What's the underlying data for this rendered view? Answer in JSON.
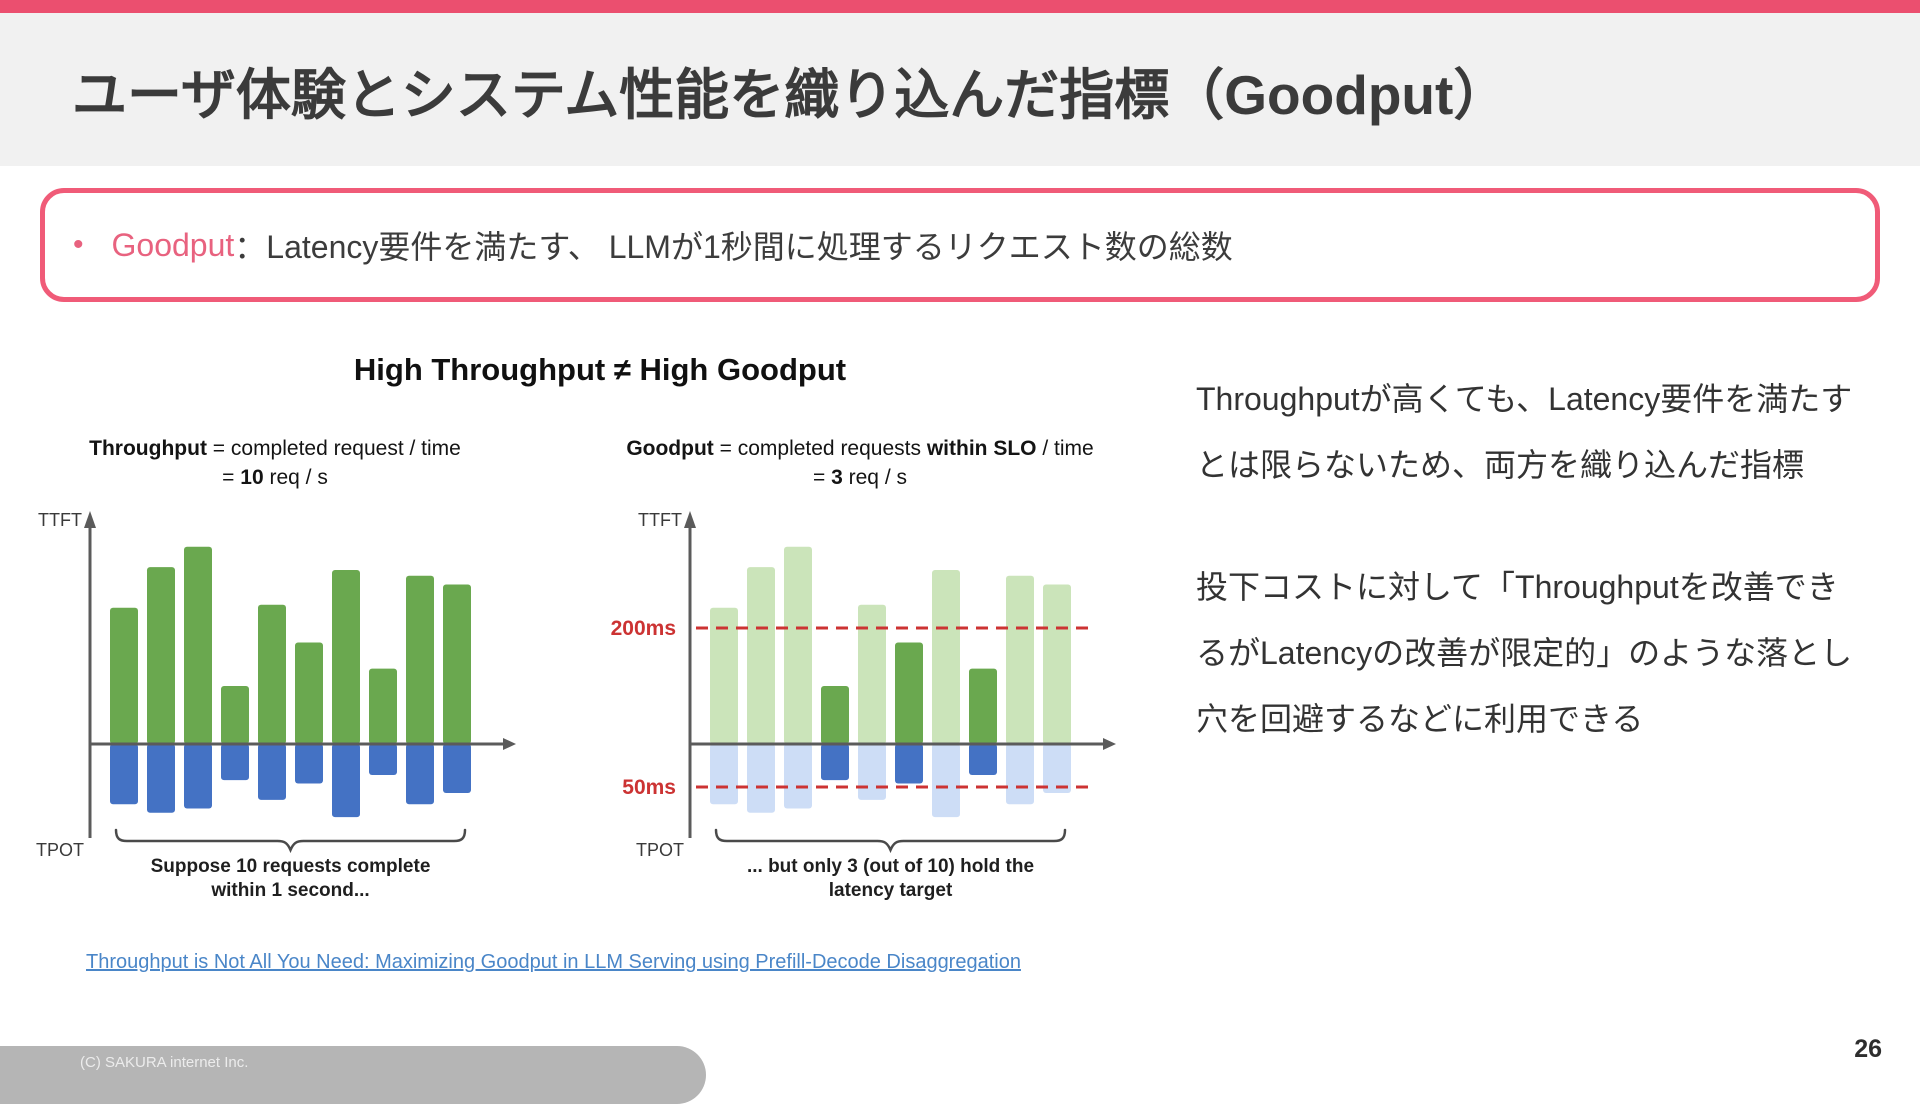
{
  "slide": {
    "title": "ユーザ体験とシステム性能を織り込んだ指標（Goodput）",
    "page_number": "26",
    "copyright": "(C) SAKURA internet Inc."
  },
  "colors": {
    "accent_pink": "#eb4f6f",
    "box_border_pink": "#f05b78",
    "term_pink": "#e8627f",
    "link_blue": "#4a86c8",
    "footer_gray": "#b5b5b5",
    "header_band_gray": "#f1f1f1"
  },
  "definition": {
    "bullet": "•",
    "term": "Goodput",
    "text": "：Latency要件を満たす、 LLMが1秒間に処理するリクエスト数の総数"
  },
  "diagram": {
    "heading": "High Throughput ≠ High Goodput"
  },
  "notes": {
    "para1": "Throughputが高くても、Latency要件を満たすとは限らないため、両方を織り込んだ指標",
    "para2": "投下コストに対して「Throughputを改善できるがLatencyの改善が限定的」のような落とし穴を回避するなどに利用できる"
  },
  "reference": {
    "link_text": "Throughput is Not All You Need: Maximizing Goodput in LLM Serving using Prefill-Decode Disaggregation"
  },
  "chart_data": [
    {
      "type": "bar",
      "name": "throughput-chart",
      "n_requests": 10,
      "formula_line1": [
        {
          "text": "Throughput",
          "bold": true
        },
        {
          "text": " = completed request / time",
          "bold": false
        }
      ],
      "formula_line2": [
        {
          "text": "= ",
          "bold": false
        },
        {
          "text": "10",
          "bold": true
        },
        {
          "text": " req / s",
          "bold": false
        }
      ],
      "y_axis_up_label": "TTFT",
      "y_axis_down_label": "TPOT",
      "y_up_max_ms": 350,
      "y_down_max_ms": 90,
      "series": [
        {
          "name": "TTFT (ms)",
          "direction": "up",
          "values": [
            235,
            305,
            340,
            100,
            240,
            175,
            300,
            130,
            290,
            275
          ]
        },
        {
          "name": "TPOT (ms)",
          "direction": "down",
          "values": [
            70,
            80,
            75,
            42,
            65,
            46,
            85,
            36,
            70,
            57
          ]
        }
      ],
      "colors": {
        "ttft": "#6aa84f",
        "tpot": "#4472c4"
      },
      "caption_lines": [
        "Suppose 10 requests complete",
        "within 1 second..."
      ]
    },
    {
      "type": "bar",
      "name": "goodput-chart",
      "n_requests": 10,
      "formula_line1": [
        {
          "text": "Goodput",
          "bold": true
        },
        {
          "text": " = completed requests ",
          "bold": false
        },
        {
          "text": "within SLO",
          "bold": true
        },
        {
          "text": " / time",
          "bold": false
        }
      ],
      "formula_line2": [
        {
          "text": "= ",
          "bold": false
        },
        {
          "text": "3",
          "bold": true
        },
        {
          "text": " req / s",
          "bold": false
        }
      ],
      "y_axis_up_label": "TTFT",
      "y_axis_down_label": "TPOT",
      "y_up_max_ms": 350,
      "y_down_max_ms": 90,
      "series": [
        {
          "name": "TTFT (ms)",
          "direction": "up",
          "values": [
            235,
            305,
            340,
            100,
            240,
            175,
            300,
            130,
            290,
            275
          ]
        },
        {
          "name": "TPOT (ms)",
          "direction": "down",
          "values": [
            70,
            80,
            75,
            42,
            65,
            46,
            85,
            36,
            70,
            57
          ]
        }
      ],
      "meets_slo": [
        false,
        false,
        false,
        true,
        false,
        true,
        false,
        true,
        false,
        false
      ],
      "thresholds": [
        {
          "label": "200ms",
          "ms": 200,
          "side": "up"
        },
        {
          "label": "50ms",
          "ms": 50,
          "side": "down"
        }
      ],
      "colors": {
        "ttft_met": "#6aa84f",
        "ttft_missed": "#cbe4ba",
        "tpot_met": "#4472c4",
        "tpot_missed": "#cdddf6",
        "threshold": "#cc3333"
      },
      "caption_lines": [
        "... but only 3 (out of 10) hold the",
        "latency target"
      ]
    }
  ]
}
